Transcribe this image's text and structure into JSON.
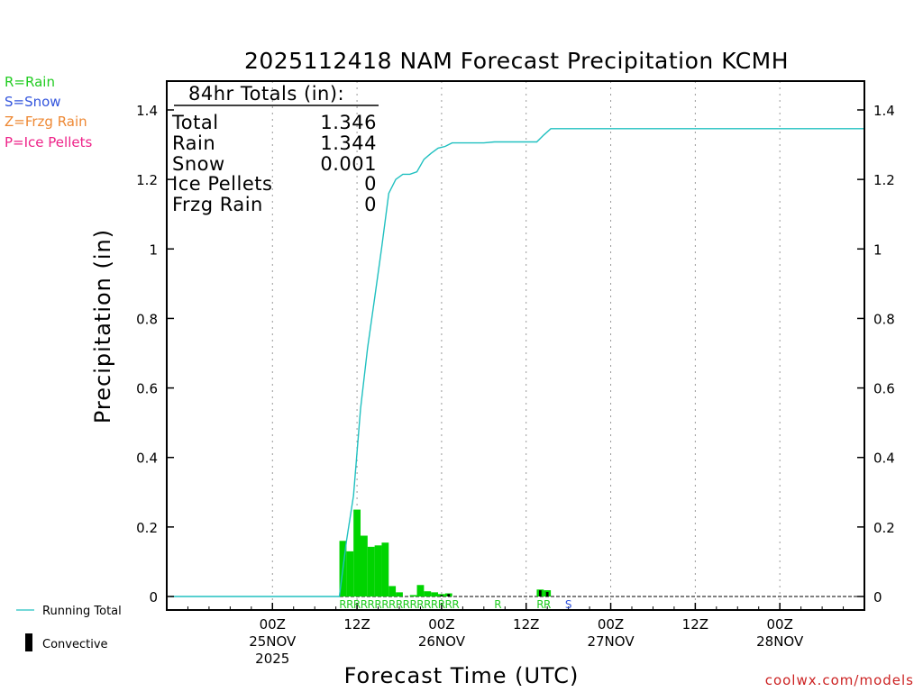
{
  "chart_data": {
    "type": "bar",
    "title": "2025112418 NAM Forecast Precipitation KCMH",
    "ylabel": "Precipitation (in)",
    "xlabel": "Forecast Time (UTC)",
    "ylim": [
      0,
      1.48
    ],
    "xlim_hours": [
      -15,
      84
    ],
    "yticks": [
      {
        "v": 0,
        "label": "0"
      },
      {
        "v": 0.2,
        "label": "0.2"
      },
      {
        "v": 0.4,
        "label": "0.4"
      },
      {
        "v": 0.6,
        "label": "0.6"
      },
      {
        "v": 0.8,
        "label": "0.8"
      },
      {
        "v": 1.0,
        "label": "1"
      },
      {
        "v": 1.2,
        "label": "1.2"
      },
      {
        "v": 1.4,
        "label": "1.4"
      }
    ],
    "xticks": [
      {
        "h": 0,
        "l1": "00Z",
        "l2": "25NOV",
        "l3": "2025"
      },
      {
        "h": 12,
        "l1": "12Z",
        "l2": "",
        "l3": ""
      },
      {
        "h": 24,
        "l1": "00Z",
        "l2": "26NOV",
        "l3": ""
      },
      {
        "h": 36,
        "l1": "12Z",
        "l2": "",
        "l3": ""
      },
      {
        "h": 48,
        "l1": "00Z",
        "l2": "27NOV",
        "l3": ""
      },
      {
        "h": 60,
        "l1": "12Z",
        "l2": "",
        "l3": ""
      },
      {
        "h": 72,
        "l1": "00Z",
        "l2": "28NOV",
        "l3": ""
      }
    ],
    "bars": [
      {
        "h": 10,
        "v": 0.16,
        "c": 0.0
      },
      {
        "h": 11,
        "v": 0.13,
        "c": 0.0
      },
      {
        "h": 12,
        "v": 0.25,
        "c": 0.0
      },
      {
        "h": 13,
        "v": 0.175,
        "c": 0.0
      },
      {
        "h": 14,
        "v": 0.143,
        "c": 0.0
      },
      {
        "h": 15,
        "v": 0.147,
        "c": 0.0
      },
      {
        "h": 16,
        "v": 0.155,
        "c": 0.0
      },
      {
        "h": 17,
        "v": 0.03,
        "c": 0.0
      },
      {
        "h": 18,
        "v": 0.012,
        "c": 0.0
      },
      {
        "h": 20,
        "v": 0.004,
        "c": 0.0
      },
      {
        "h": 21,
        "v": 0.033,
        "c": 0.0
      },
      {
        "h": 22,
        "v": 0.015,
        "c": 0.0
      },
      {
        "h": 23,
        "v": 0.012,
        "c": 0.0
      },
      {
        "h": 24,
        "v": 0.007,
        "c": 0.004
      },
      {
        "h": 25,
        "v": 0.009,
        "c": 0.007
      },
      {
        "h": 38,
        "v": 0.02,
        "c": 0.018
      },
      {
        "h": 39,
        "v": 0.018,
        "c": 0.013
      }
    ],
    "running_total": [
      {
        "h": -14.5,
        "v": 0
      },
      {
        "h": 9.5,
        "v": 0
      },
      {
        "h": 10.5,
        "v": 0.16
      },
      {
        "h": 11.5,
        "v": 0.29
      },
      {
        "h": 12.5,
        "v": 0.54
      },
      {
        "h": 13.5,
        "v": 0.715
      },
      {
        "h": 14.5,
        "v": 0.858
      },
      {
        "h": 15.5,
        "v": 1.005
      },
      {
        "h": 16.5,
        "v": 1.16
      },
      {
        "h": 17.5,
        "v": 1.2
      },
      {
        "h": 18.5,
        "v": 1.215
      },
      {
        "h": 19.5,
        "v": 1.215
      },
      {
        "h": 20.5,
        "v": 1.222
      },
      {
        "h": 21.5,
        "v": 1.258
      },
      {
        "h": 22.5,
        "v": 1.275
      },
      {
        "h": 23.5,
        "v": 1.29
      },
      {
        "h": 24.5,
        "v": 1.295
      },
      {
        "h": 25.5,
        "v": 1.305
      },
      {
        "h": 30,
        "v": 1.305
      },
      {
        "h": 31.5,
        "v": 1.308
      },
      {
        "h": 37.5,
        "v": 1.308
      },
      {
        "h": 38.5,
        "v": 1.328
      },
      {
        "h": 39.5,
        "v": 1.346
      },
      {
        "h": 84,
        "v": 1.346
      }
    ],
    "ptype_markers": [
      {
        "h": 10,
        "t": "R"
      },
      {
        "h": 11,
        "t": "R"
      },
      {
        "h": 12,
        "t": "R"
      },
      {
        "h": 13,
        "t": "R"
      },
      {
        "h": 14,
        "t": "R"
      },
      {
        "h": 15,
        "t": "R"
      },
      {
        "h": 16,
        "t": "R"
      },
      {
        "h": 17,
        "t": "R"
      },
      {
        "h": 18,
        "t": "R"
      },
      {
        "h": 19,
        "t": "R"
      },
      {
        "h": 20,
        "t": "R"
      },
      {
        "h": 21,
        "t": "R"
      },
      {
        "h": 22,
        "t": "R"
      },
      {
        "h": 23,
        "t": "R"
      },
      {
        "h": 24,
        "t": "R"
      },
      {
        "h": 25,
        "t": "R"
      },
      {
        "h": 26,
        "t": "R"
      },
      {
        "h": 32,
        "t": "R"
      },
      {
        "h": 38,
        "t": "R"
      },
      {
        "h": 39,
        "t": "R"
      },
      {
        "h": 42,
        "t": "S"
      }
    ]
  },
  "totals_box": {
    "header": "84hr Totals (in):",
    "rows": [
      {
        "label": "Total",
        "value": "1.346"
      },
      {
        "label": "Rain",
        "value": "1.344"
      },
      {
        "label": "Snow",
        "value": "0.001"
      },
      {
        "label": "Ice Pellets",
        "value": "0"
      },
      {
        "label": "Frzg Rain",
        "value": "0"
      }
    ]
  },
  "ptype_legend": [
    {
      "label": "R=Rain",
      "color": "#22cc22"
    },
    {
      "label": "S=Snow",
      "color": "#3355dd"
    },
    {
      "label": "Z=Frzg Rain",
      "color": "#ee8833"
    },
    {
      "label": "P=Ice Pellets",
      "color": "#ee2288"
    }
  ],
  "bottom_legend": {
    "running_total": "Running Total",
    "convective": "Convective"
  },
  "credit": "coolwx.com/models",
  "colors": {
    "bar": "#00d400",
    "convective": "#000000",
    "line": "#20c0c0",
    "rain": "#22cc22",
    "snow": "#3355dd"
  }
}
